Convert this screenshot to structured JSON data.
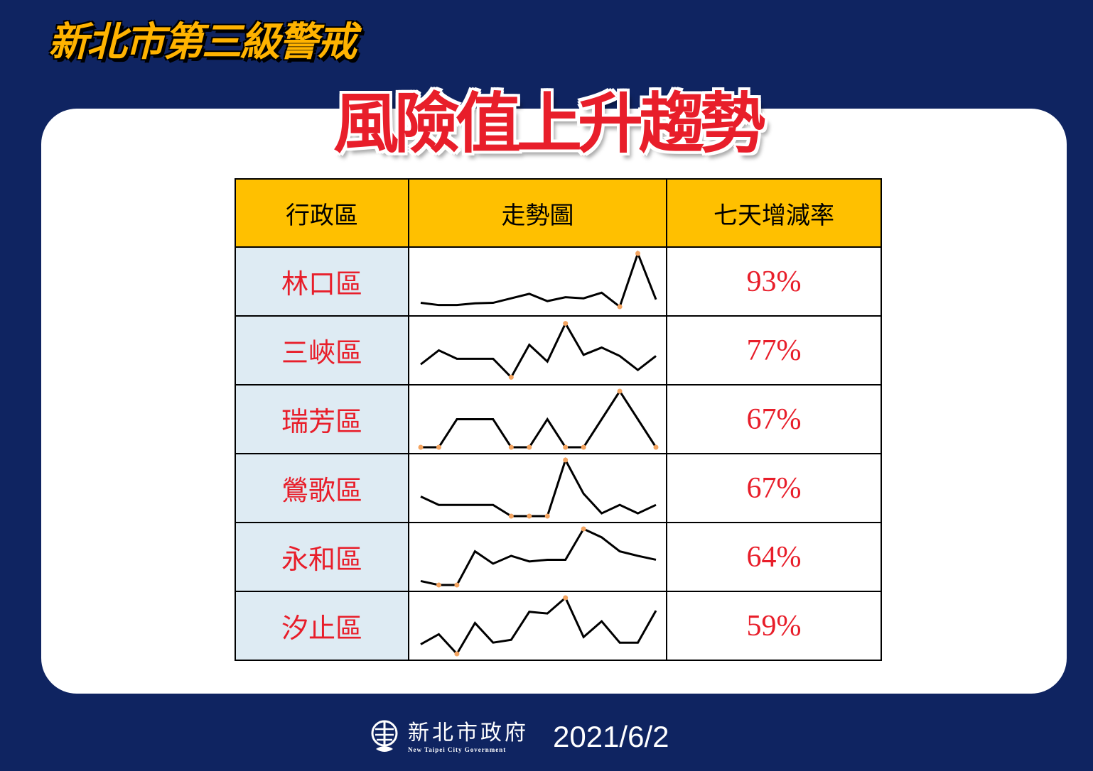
{
  "header": {
    "alert_title": "新北市第三級警戒",
    "main_title": "風險值上升趨勢"
  },
  "table": {
    "columns": [
      "行政區",
      "走勢圖",
      "七天增減率"
    ],
    "rows": [
      {
        "district": "林口區",
        "rate": "93%",
        "trend": [
          12,
          8,
          8,
          11,
          12,
          20,
          28,
          15,
          22,
          20,
          30,
          5,
          100,
          18
        ]
      },
      {
        "district": "三峽區",
        "rate": "77%",
        "trend": [
          25,
          50,
          35,
          35,
          35,
          2,
          60,
          30,
          98,
          42,
          55,
          40,
          15,
          40
        ]
      },
      {
        "district": "瑞芳區",
        "rate": "67%",
        "trend": [
          0,
          0,
          50,
          50,
          50,
          0,
          0,
          50,
          0,
          0,
          50,
          100,
          50,
          0
        ]
      },
      {
        "district": "鶯歌區",
        "rate": "67%",
        "trend": [
          35,
          20,
          20,
          20,
          20,
          0,
          0,
          0,
          100,
          40,
          5,
          20,
          5,
          20
        ]
      },
      {
        "district": "永和區",
        "rate": "64%",
        "trend": [
          7,
          0,
          0,
          60,
          38,
          52,
          42,
          45,
          45,
          100,
          85,
          60,
          52,
          45
        ]
      },
      {
        "district": "汐止區",
        "rate": "59%",
        "trend": [
          17,
          35,
          0,
          55,
          20,
          25,
          75,
          72,
          100,
          30,
          58,
          20,
          20,
          77
        ]
      }
    ]
  },
  "footer": {
    "org_name": "新北市政府",
    "org_name_en": "New Taipei City Government",
    "date": "2021/6/2"
  },
  "colors": {
    "background": "#0f2461",
    "header_fill": "#ffc000",
    "district_fill": "#deebf3",
    "accent_red": "#e81e2a",
    "marker": "#f4a460"
  }
}
